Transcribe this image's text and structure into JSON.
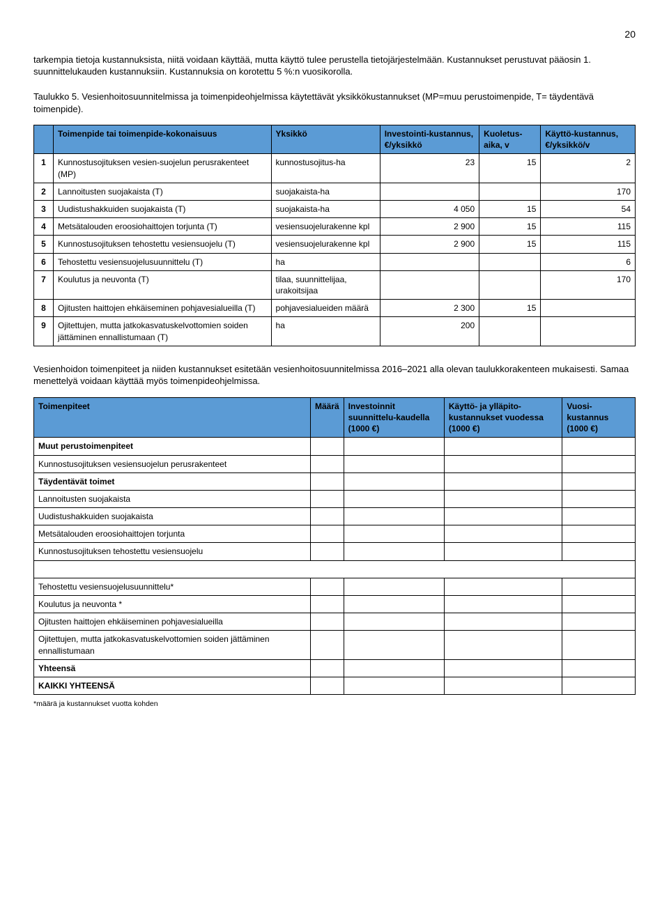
{
  "page_number": "20",
  "colors": {
    "header_bg": "#5b9bd5",
    "header_text": "#000000",
    "border": "#000000"
  },
  "intro": {
    "p1": "tarkempia tietoja kustannuksista, niitä voidaan käyttää, mutta käyttö tulee perustella tietojärjestelmään. Kustannukset perustuvat pääosin 1. suunnittelukauden kustannuksiin. Kustannuksia on korotettu 5 %:n vuosikorolla.",
    "p2": "Taulukko 5. Vesienhoitosuunnitelmissa ja toimenpideohjelmissa käytettävät yksikkökustannukset (MP=muu perustoimenpide, T= täydentävä toimenpide)."
  },
  "table1": {
    "headers": {
      "c1": "",
      "c2": "Toimenpide tai toimenpide-kokonaisuus",
      "c3": "Yksikkö",
      "c4": "Investointi-kustannus, €/yksikkö",
      "c5": "Kuoletus-aika, v",
      "c6": "Käyttö-kustannus, €/yksikkö/v"
    },
    "rows": [
      {
        "n": "1",
        "desc": "Kunnostusojituksen vesien-suojelun perusrakenteet (MP)",
        "unit": "kunnostusojitus-ha",
        "inv": "23",
        "amort": "15",
        "op": "2"
      },
      {
        "n": "2",
        "desc": "Lannoitusten suojakaista (T)",
        "unit": "suojakaista-ha",
        "inv": "",
        "amort": "",
        "op": "170"
      },
      {
        "n": "3",
        "desc": "Uudistushakkuiden suojakaista (T)",
        "unit": "suojakaista-ha",
        "inv": "4 050",
        "amort": "15",
        "op": "54"
      },
      {
        "n": "4",
        "desc": "Metsätalouden eroosiohaittojen torjunta (T)",
        "unit": "vesiensuojelurakenne kpl",
        "inv": "2 900",
        "amort": "15",
        "op": "115"
      },
      {
        "n": "5",
        "desc": "Kunnostusojituksen tehostettu vesiensuojelu (T)",
        "unit": "vesiensuojelurakenne kpl",
        "inv": "2 900",
        "amort": "15",
        "op": "115"
      },
      {
        "n": "6",
        "desc": "Tehostettu vesiensuojelusuunnittelu (T)",
        "unit": "ha",
        "inv": "",
        "amort": "",
        "op": "6"
      },
      {
        "n": "7",
        "desc": "Koulutus ja neuvonta (T)",
        "unit": "tilaa, suunnittelijaa, urakoitsijaa",
        "inv": "",
        "amort": "",
        "op": "170"
      },
      {
        "n": "8",
        "desc": "Ojitusten haittojen ehkäiseminen pohjavesialueilla (T)",
        "unit": "pohjavesialueiden määrä",
        "inv": "2 300",
        "amort": "15",
        "op": ""
      },
      {
        "n": "9",
        "desc": "Ojitettujen, mutta jatkokasvatuskelvottomien soiden jättäminen ennallistumaan (T)",
        "unit": "ha",
        "inv": "200",
        "amort": "",
        "op": ""
      }
    ]
  },
  "mid_para": "Vesienhoidon toimenpiteet ja niiden kustannukset esitetään vesienhoitosuunnitelmissa 2016–2021 alla olevan taulukkorakenteen mukaisesti. Samaa menettelyä voidaan käyttää myös toimenpideohjelmissa.",
  "table2": {
    "headers": {
      "c1": "Toimenpiteet",
      "c2": "Määrä",
      "c3": "Investoinnit suunnittelu-kaudella (1000 €)",
      "c4": "Käyttö- ja ylläpito-kustannukset vuodessa (1000 €)",
      "c5": "Vuosi-kustannus (1000 €)"
    },
    "rows": [
      {
        "label": "Muut perustoimenpiteet",
        "bold": true
      },
      {
        "label": "Kunnostusojituksen vesiensuojelun perusrakenteet",
        "bold": false
      },
      {
        "label": "Täydentävät toimet",
        "bold": true
      },
      {
        "label": "Lannoitusten suojakaista",
        "bold": false
      },
      {
        "label": "Uudistushakkuiden suojakaista",
        "bold": false
      },
      {
        "label": "Metsätalouden eroosiohaittojen torjunta",
        "bold": false
      },
      {
        "label": "Kunnostusojituksen tehostettu vesiensuojelu",
        "bold": false
      },
      {
        "label": "Tehostettu vesiensuojelusuunnittelu*",
        "bold": false,
        "gap_before": true
      },
      {
        "label": "Koulutus ja neuvonta *",
        "bold": false
      },
      {
        "label": "Ojitusten haittojen ehkäiseminen pohjavesialueilla",
        "bold": false
      },
      {
        "label": "Ojitettujen, mutta jatkokasvatuskelvottomien soiden jättäminen ennallistumaan",
        "bold": false
      },
      {
        "label": "Yhteensä",
        "bold": true
      },
      {
        "label": "KAIKKI YHTEENSÄ",
        "bold": true
      }
    ]
  },
  "footnote": "*määrä ja kustannukset vuotta kohden"
}
